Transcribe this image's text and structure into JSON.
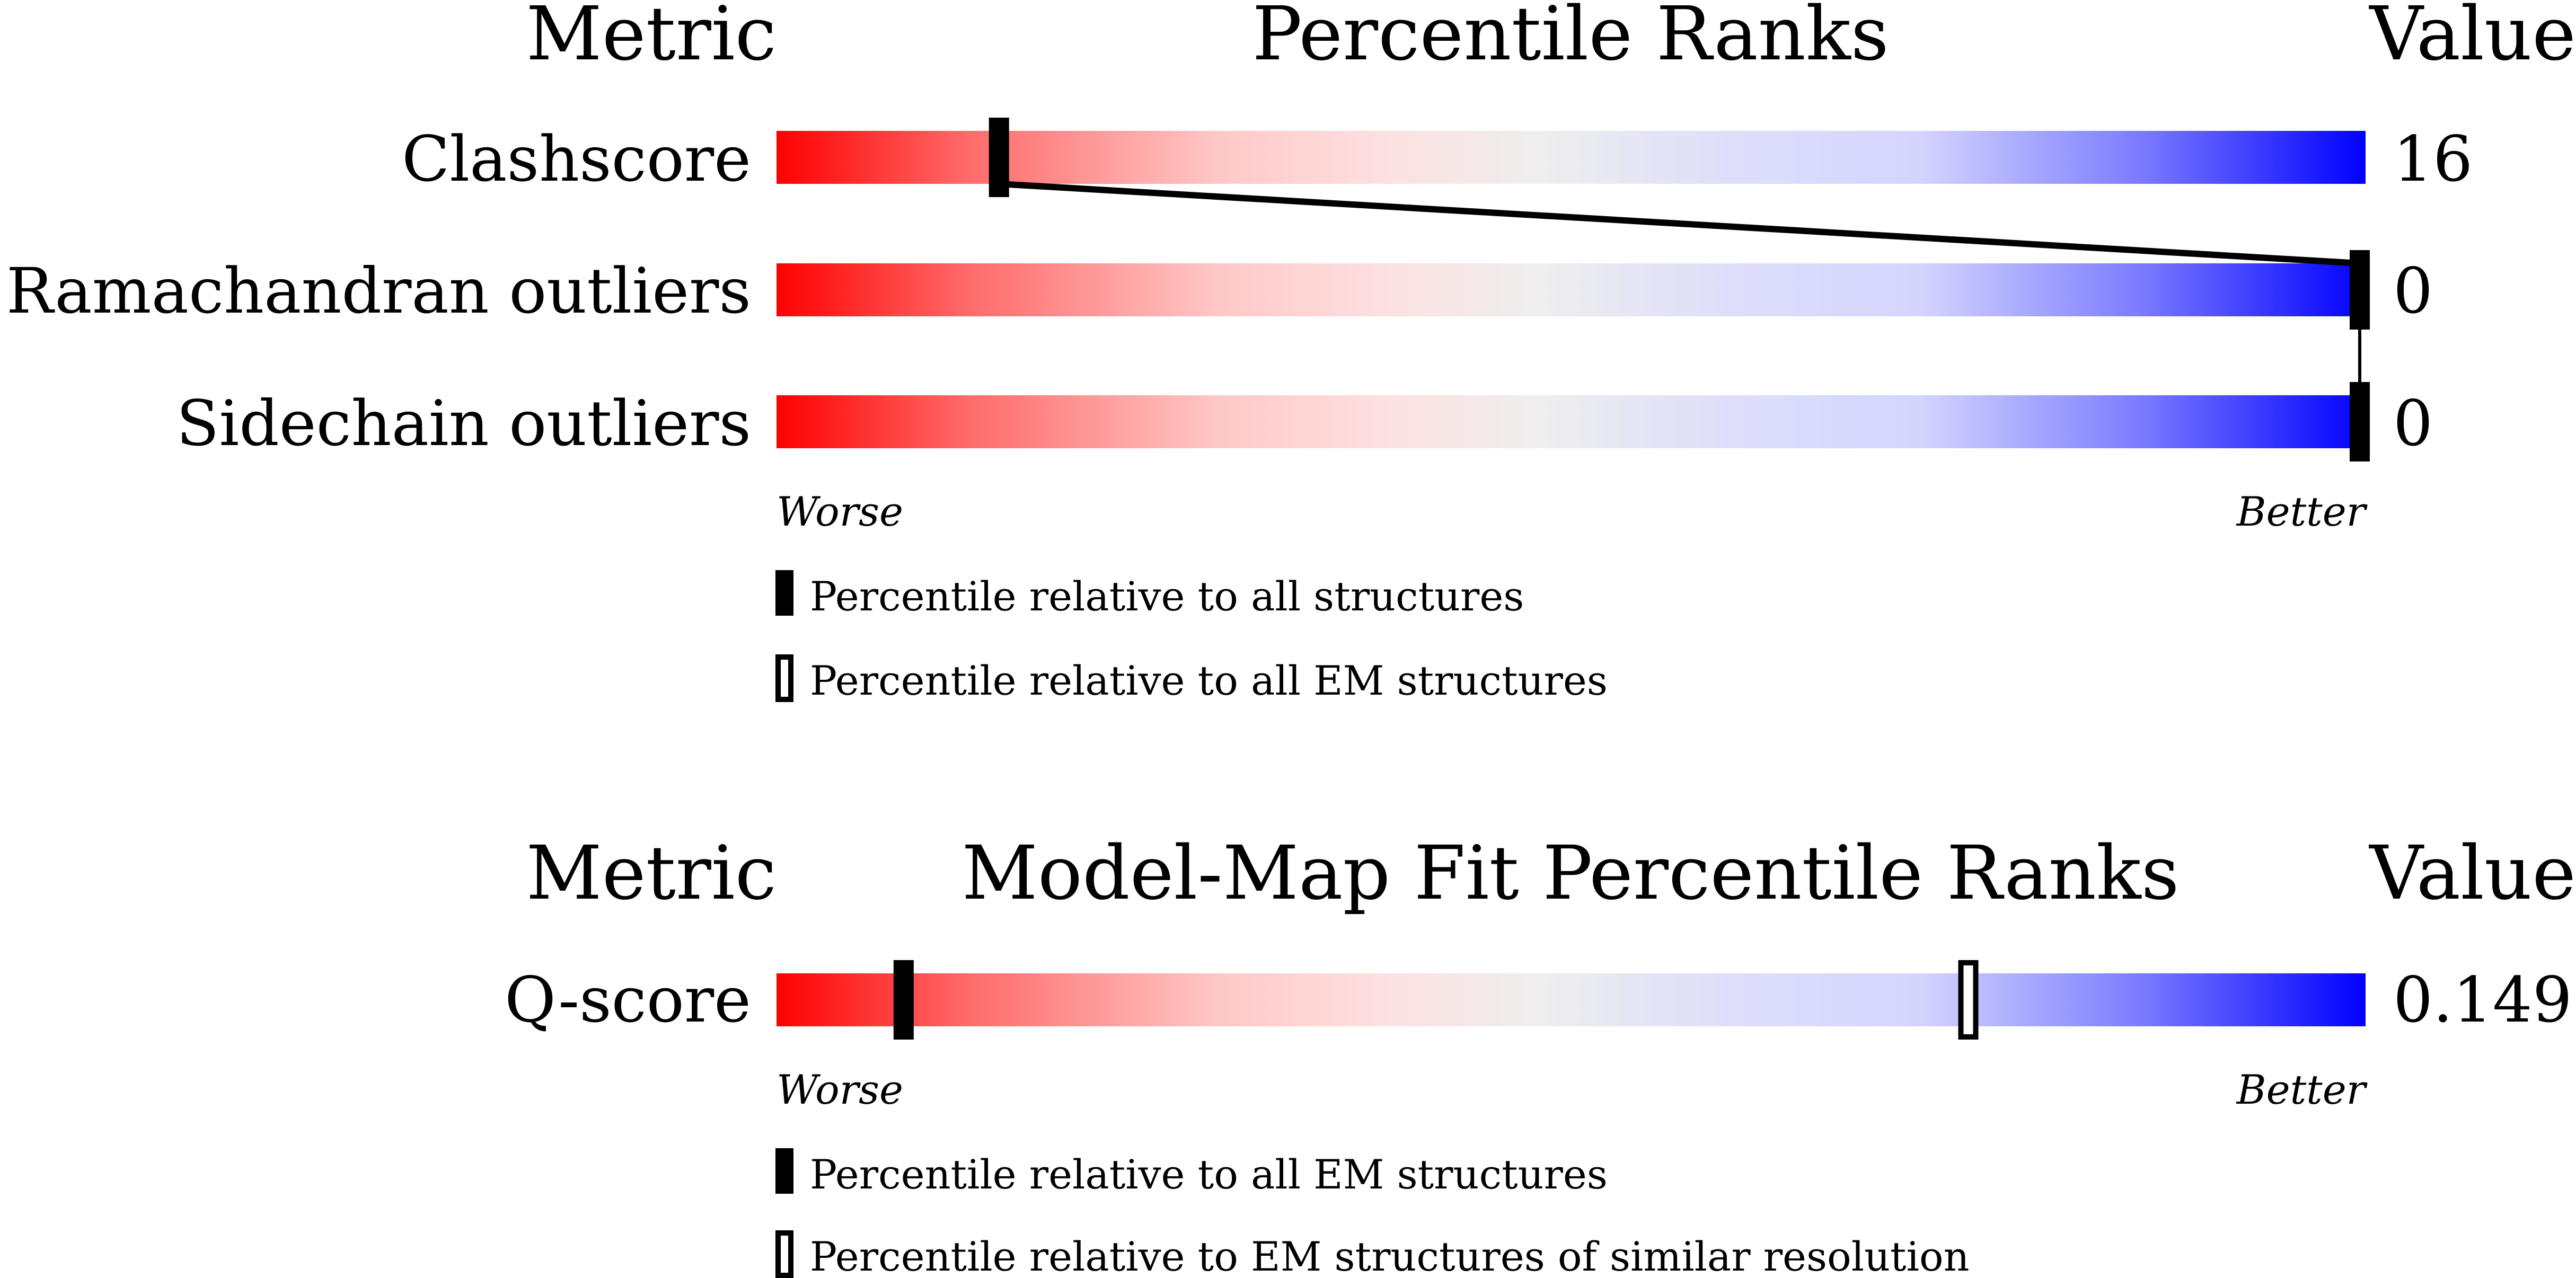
{
  "chart_data": [
    {
      "type": "percentile-slider",
      "header": {
        "metric": "Metric",
        "title": "Percentile Ranks",
        "value": "Value"
      },
      "scale": {
        "left": "Worse",
        "right": "Better",
        "range": [
          0,
          100
        ]
      },
      "rows": [
        {
          "metric": "Clashscore",
          "value": "16",
          "percentile_all": 14
        },
        {
          "metric": "Ramachandran outliers",
          "value": "0",
          "percentile_all": 100
        },
        {
          "metric": "Sidechain outliers",
          "value": "0",
          "percentile_all": 100
        }
      ],
      "legend": [
        {
          "marker": "filled",
          "label": "Percentile relative to all structures"
        },
        {
          "marker": "hollow",
          "label": "Percentile relative to all EM structures"
        }
      ]
    },
    {
      "type": "percentile-slider",
      "header": {
        "metric": "Metric",
        "title": "Model-Map Fit Percentile Ranks",
        "value": "Value"
      },
      "scale": {
        "left": "Worse",
        "right": "Better",
        "range": [
          0,
          100
        ]
      },
      "rows": [
        {
          "metric": "Q-score",
          "value": "0.149",
          "percentile_all": 8,
          "percentile_similar": 75
        }
      ],
      "legend": [
        {
          "marker": "filled",
          "label": "Percentile relative to all EM structures"
        },
        {
          "marker": "hollow",
          "label": "Percentile relative to EM structures of similar resolution"
        }
      ]
    }
  ],
  "colors": {
    "worse": "#ff0000",
    "middle": "#eeeeee",
    "better": "#0000ff",
    "marker": "#000000"
  }
}
